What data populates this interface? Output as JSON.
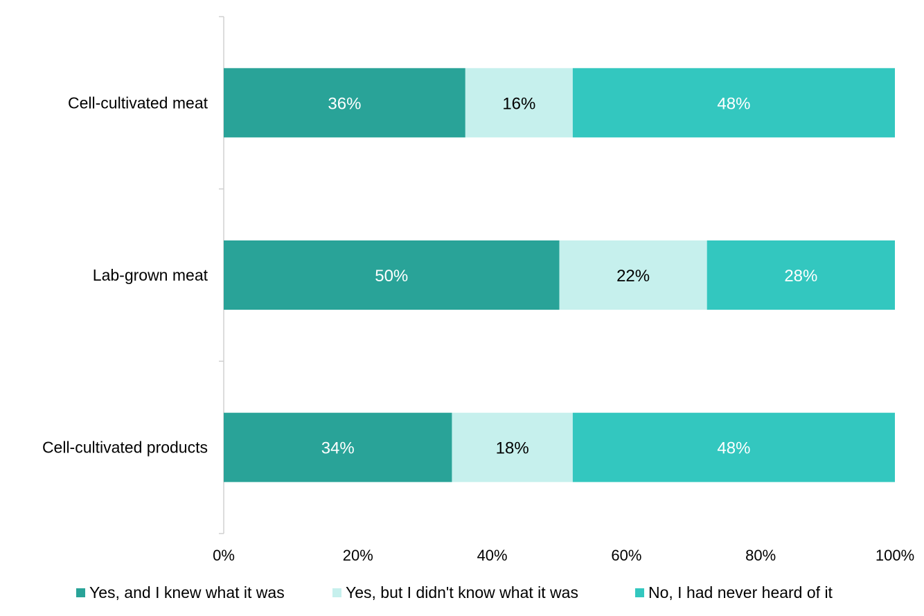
{
  "chart_data": {
    "type": "bar",
    "orientation": "horizontal",
    "stacked": true,
    "categories": [
      "Cell-cultivated meat",
      "Lab-grown meat",
      "Cell-cultivated products"
    ],
    "series": [
      {
        "name": "Yes, and I knew what it was",
        "values": [
          36,
          50,
          34
        ],
        "color": "#29a398",
        "label_color": "#ffffff"
      },
      {
        "name": "Yes, but I didn't know what it was",
        "values": [
          16,
          22,
          18
        ],
        "color": "#c6f0ed",
        "label_color": "#000000"
      },
      {
        "name": "No, I had never heard of it",
        "values": [
          48,
          28,
          48
        ],
        "color": "#33c7bf",
        "label_color": "#ffffff"
      }
    ],
    "xlim": [
      0,
      100
    ],
    "xticks": [
      "0%",
      "20%",
      "40%",
      "60%",
      "80%",
      "100%"
    ],
    "value_suffix": "%",
    "legend_position": "bottom",
    "grid": false
  }
}
